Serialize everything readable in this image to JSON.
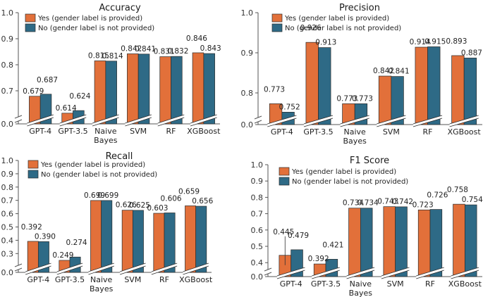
{
  "colors": {
    "yes": "#E2703A",
    "no": "#2E6A86",
    "axis": "#555555",
    "edge": "#2b2b2b"
  },
  "chart_data": [
    {
      "type": "bar",
      "title": "Accuracy",
      "xlabel": "",
      "ylabel": "",
      "categories": [
        "GPT-4",
        "GPT-3.5",
        "Naive Bayes",
        "SVM",
        "RF",
        "XGBoost"
      ],
      "category_lines": [
        [
          "GPT-4"
        ],
        [
          "GPT-3.5"
        ],
        [
          "Naive",
          "Bayes"
        ],
        [
          "SVM"
        ],
        [
          "RF"
        ],
        [
          "XGBoost"
        ]
      ],
      "series": [
        {
          "name": "Yes (gender label is provided)",
          "values": [
            0.679,
            0.614,
            0.815,
            0.842,
            0.831,
            0.846
          ],
          "labels": [
            "0.679",
            "0.614",
            "0.815",
            "0.842",
            "0.831",
            "0.846"
          ]
        },
        {
          "name": "No (gender label is not provided)",
          "values": [
            0.687,
            0.624,
            0.814,
            0.841,
            0.832,
            0.843
          ],
          "labels": [
            "0.687",
            "0.624",
            "0.814",
            "0.841",
            "0.832",
            "0.843"
          ]
        }
      ],
      "yticks": [
        "0.0",
        "0.7",
        "0.8",
        "0.9",
        "1.0"
      ],
      "ylim": [
        0.0,
        1.0
      ],
      "axis_break": [
        0.0,
        0.6
      ],
      "legend": "top-left",
      "grid": false
    },
    {
      "type": "bar",
      "title": "Precision",
      "xlabel": "",
      "ylabel": "",
      "categories": [
        "GPT-4",
        "GPT-3.5",
        "Naive Bayes",
        "SVM",
        "RF",
        "XGBoost"
      ],
      "category_lines": [
        [
          "GPT-4"
        ],
        [
          "GPT-3.5"
        ],
        [
          "Naive",
          "Bayes"
        ],
        [
          "SVM"
        ],
        [
          "RF"
        ],
        [
          "XGBoost"
        ]
      ],
      "series": [
        {
          "name": "Yes (gender label is provided)",
          "values": [
            0.773,
            0.926,
            0.773,
            0.842,
            0.914,
            0.893
          ],
          "labels": [
            "0.773",
            "0.926",
            "0.773",
            "0.842",
            "0.914",
            "0.893"
          ]
        },
        {
          "name": "No (gender label is not provided)",
          "values": [
            0.752,
            0.913,
            0.773,
            0.841,
            0.915,
            0.887
          ],
          "labels": [
            "0.752",
            "0.913",
            "0.773",
            "0.841",
            "0.915",
            "0.887"
          ]
        }
      ],
      "yticks": [
        "0.0",
        "0.8",
        "0.9",
        "1.0"
      ],
      "ylim": [
        0.0,
        1.0
      ],
      "axis_break": [
        0.0,
        0.72
      ],
      "legend": "top-left",
      "grid": false
    },
    {
      "type": "bar",
      "title": "Recall",
      "xlabel": "",
      "ylabel": "",
      "categories": [
        "GPT-4",
        "GPT-3.5",
        "Naive Bayes",
        "SVM",
        "RF",
        "XGBoost"
      ],
      "category_lines": [
        [
          "GPT-4"
        ],
        [
          "GPT-3.5"
        ],
        [
          "Naive",
          "Bayes"
        ],
        [
          "SVM"
        ],
        [
          "RF"
        ],
        [
          "XGBoost"
        ]
      ],
      "series": [
        {
          "name": "Yes (gender label is provided)",
          "values": [
            0.392,
            0.249,
            0.699,
            0.626,
            0.603,
            0.659
          ],
          "labels": [
            "0.392",
            "0.249",
            "0.699",
            "0.626",
            "0.603",
            "0.659"
          ]
        },
        {
          "name": "No (gender label is not provided)",
          "values": [
            0.39,
            0.274,
            0.699,
            0.625,
            0.606,
            0.656
          ],
          "labels": [
            "0.390",
            "0.274",
            "0.699",
            "0.625",
            "0.606",
            "0.656"
          ]
        }
      ],
      "yticks": [
        "0.0",
        "0.3",
        "0.4",
        "0.5",
        "0.6",
        "0.7",
        "0.8",
        "0.9",
        "1.0"
      ],
      "ylim": [
        0.0,
        1.0
      ],
      "axis_break": [
        0.0,
        0.2
      ],
      "legend": "top-left",
      "grid": false
    },
    {
      "type": "bar",
      "title": "F1 Score",
      "xlabel": "",
      "ylabel": "",
      "categories": [
        "GPT-4",
        "GPT-3.5",
        "Naive Bayes",
        "SVM",
        "RF",
        "XGBoost"
      ],
      "category_lines": [
        [
          "GPT-4"
        ],
        [
          "GPT-3.5"
        ],
        [
          "Naive",
          "Bayes"
        ],
        [
          "SVM"
        ],
        [
          "RF"
        ],
        [
          "XGBoost"
        ]
      ],
      "series": [
        {
          "name": "Yes (gender label is provided)",
          "values": [
            0.445,
            0.392,
            0.734,
            0.743,
            0.723,
            0.758
          ],
          "labels": [
            "0.445",
            "0.392",
            "0.734",
            "0.743",
            "0.723",
            "0.758"
          ]
        },
        {
          "name": "No (gender label is not provided)",
          "values": [
            0.479,
            0.421,
            0.734,
            0.742,
            0.726,
            0.754
          ],
          "labels": [
            "0.479",
            "0.421",
            "0.734",
            "0.742",
            "0.726",
            "0.754"
          ]
        }
      ],
      "yticks": [
        "0.0",
        "0.4",
        "0.5",
        "0.6",
        "0.7",
        "0.8",
        "0.9",
        "1.0"
      ],
      "ylim": [
        0.0,
        1.0
      ],
      "axis_break": [
        0.0,
        0.31
      ],
      "legend": "top-left",
      "grid": false,
      "annotations": [
        {
          "text": "0.445",
          "target": "GPT-4 Yes bar",
          "style": "leader-line"
        }
      ]
    }
  ]
}
